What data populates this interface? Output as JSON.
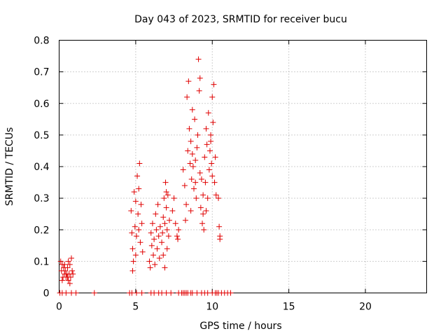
{
  "chart_data": {
    "type": "scatter",
    "title": "Day 043 of 2023, SRMTID for receiver bucu",
    "xlabel": "GPS time / hours",
    "ylabel": "SRMTID / TECUs",
    "xlim": [
      0,
      24
    ],
    "ylim": [
      0,
      0.8
    ],
    "x_ticks": [
      0,
      5,
      10,
      15,
      20
    ],
    "x_tick_labels": [
      "0",
      "5",
      "10",
      "15",
      "20"
    ],
    "y_ticks": [
      0,
      0.1,
      0.2,
      0.3,
      0.4,
      0.5,
      0.6,
      0.7,
      0.8
    ],
    "y_tick_labels": [
      "0",
      "0.1",
      "0.2",
      "0.3",
      "0.4",
      "0.5",
      "0.6",
      "0.7",
      "0.8"
    ],
    "grid": true,
    "marker": "plus",
    "color": "#e00000",
    "series": [
      {
        "points": [
          [
            0.1,
            0.1
          ],
          [
            0.15,
            0.07
          ],
          [
            0.2,
            0.09
          ],
          [
            0.25,
            0.05
          ],
          [
            0.3,
            0.08
          ],
          [
            0.35,
            0.06
          ],
          [
            0.4,
            0.07
          ],
          [
            0.45,
            0.05
          ],
          [
            0.5,
            0.06
          ],
          [
            0.55,
            0.08
          ],
          [
            0.6,
            0.04
          ],
          [
            0.65,
            0.06
          ],
          [
            0.7,
            0.09
          ],
          [
            0.75,
            0.05
          ],
          [
            0.8,
            0.11
          ],
          [
            0.85,
            0.07
          ],
          [
            0.9,
            0.06
          ],
          [
            0.2,
            0.04
          ],
          [
            0.6,
            0.1
          ],
          [
            0.7,
            0.03
          ],
          [
            0.35,
            0.09
          ],
          [
            0.55,
            0.05
          ],
          [
            4.7,
            0.26
          ],
          [
            4.75,
            0.19
          ],
          [
            4.8,
            0.14
          ],
          [
            4.85,
            0.1
          ],
          [
            4.9,
            0.32
          ],
          [
            4.95,
            0.21
          ],
          [
            5.0,
            0.29
          ],
          [
            5.05,
            0.18
          ],
          [
            5.1,
            0.37
          ],
          [
            5.15,
            0.25
          ],
          [
            5.2,
            0.33
          ],
          [
            5.25,
            0.41
          ],
          [
            5.3,
            0.16
          ],
          [
            5.35,
            0.28
          ],
          [
            5.4,
            0.22
          ],
          [
            5.45,
            0.13
          ],
          [
            4.8,
            0.07
          ],
          [
            5.0,
            0.12
          ],
          [
            5.2,
            0.2
          ],
          [
            5.9,
            0.1
          ],
          [
            5.95,
            0.08
          ],
          [
            6.0,
            0.19
          ],
          [
            6.05,
            0.15
          ],
          [
            6.1,
            0.22
          ],
          [
            6.15,
            0.12
          ],
          [
            6.2,
            0.17
          ],
          [
            6.25,
            0.09
          ],
          [
            6.3,
            0.25
          ],
          [
            6.35,
            0.2
          ],
          [
            6.4,
            0.14
          ],
          [
            6.45,
            0.28
          ],
          [
            6.5,
            0.18
          ],
          [
            6.55,
            0.11
          ],
          [
            6.6,
            0.21
          ],
          [
            6.7,
            0.16
          ],
          [
            6.75,
            0.19
          ],
          [
            6.8,
            0.24
          ],
          [
            6.85,
            0.3
          ],
          [
            6.9,
            0.22
          ],
          [
            6.95,
            0.35
          ],
          [
            7.0,
            0.27
          ],
          [
            7.05,
            0.2
          ],
          [
            7.1,
            0.31
          ],
          [
            7.15,
            0.18
          ],
          [
            7.2,
            0.23
          ],
          [
            6.8,
            0.12
          ],
          [
            6.9,
            0.08
          ],
          [
            7.0,
            0.32
          ],
          [
            7.05,
            0.14
          ],
          [
            7.4,
            0.26
          ],
          [
            7.5,
            0.3
          ],
          [
            7.6,
            0.22
          ],
          [
            7.7,
            0.18
          ],
          [
            7.75,
            0.17
          ],
          [
            7.8,
            0.2
          ],
          [
            8.1,
            0.39
          ],
          [
            8.2,
            0.34
          ],
          [
            8.25,
            0.23
          ],
          [
            8.3,
            0.28
          ],
          [
            8.35,
            0.62
          ],
          [
            8.4,
            0.45
          ],
          [
            8.45,
            0.67
          ],
          [
            8.5,
            0.52
          ],
          [
            8.55,
            0.41
          ],
          [
            8.6,
            0.48
          ],
          [
            8.65,
            0.36
          ],
          [
            8.7,
            0.44
          ],
          [
            8.75,
            0.4
          ],
          [
            8.8,
            0.33
          ],
          [
            8.85,
            0.55
          ],
          [
            8.9,
            0.42
          ],
          [
            8.95,
            0.3
          ],
          [
            9.0,
            0.46
          ],
          [
            9.05,
            0.5
          ],
          [
            9.1,
            0.74
          ],
          [
            9.15,
            0.64
          ],
          [
            9.2,
            0.38
          ],
          [
            9.25,
            0.27
          ],
          [
            9.3,
            0.36
          ],
          [
            9.35,
            0.22
          ],
          [
            9.4,
            0.31
          ],
          [
            9.45,
            0.2
          ],
          [
            9.5,
            0.43
          ],
          [
            9.55,
            0.35
          ],
          [
            9.6,
            0.52
          ],
          [
            9.65,
            0.47
          ],
          [
            9.7,
            0.3
          ],
          [
            9.75,
            0.57
          ],
          [
            9.8,
            0.39
          ],
          [
            9.85,
            0.45
          ],
          [
            9.9,
            0.48
          ],
          [
            9.95,
            0.41
          ],
          [
            10.0,
            0.62
          ],
          [
            10.05,
            0.54
          ],
          [
            10.1,
            0.66
          ],
          [
            10.15,
            0.35
          ],
          [
            10.2,
            0.43
          ],
          [
            10.25,
            0.31
          ],
          [
            10.4,
            0.3
          ],
          [
            10.45,
            0.21
          ],
          [
            10.5,
            0.18
          ],
          [
            10.5,
            0.17
          ],
          [
            8.6,
            0.26
          ],
          [
            9.2,
            0.68
          ],
          [
            9.6,
            0.26
          ],
          [
            9.9,
            0.5
          ],
          [
            8.9,
            0.35
          ],
          [
            9.4,
            0.25
          ],
          [
            10.0,
            0.37
          ],
          [
            8.7,
            0.58
          ],
          [
            0.05,
            0
          ],
          [
            0.2,
            0
          ],
          [
            0.45,
            0
          ],
          [
            0.8,
            0
          ],
          [
            1.1,
            0
          ],
          [
            2.3,
            0
          ],
          [
            4.6,
            0
          ],
          [
            4.75,
            0
          ],
          [
            5.05,
            0
          ],
          [
            5.4,
            0
          ],
          [
            6.0,
            0
          ],
          [
            6.2,
            0
          ],
          [
            6.5,
            0
          ],
          [
            6.7,
            0
          ],
          [
            7.0,
            0
          ],
          [
            7.3,
            0
          ],
          [
            7.8,
            0
          ],
          [
            8.0,
            0
          ],
          [
            8.1,
            0
          ],
          [
            8.2,
            0
          ],
          [
            8.3,
            0
          ],
          [
            8.4,
            0
          ],
          [
            8.6,
            0
          ],
          [
            8.7,
            0
          ],
          [
            9.0,
            0
          ],
          [
            9.3,
            0
          ],
          [
            9.5,
            0
          ],
          [
            9.7,
            0
          ],
          [
            10.0,
            0
          ],
          [
            10.2,
            0
          ],
          [
            10.3,
            0
          ],
          [
            10.4,
            0
          ],
          [
            10.6,
            0
          ],
          [
            10.8,
            0
          ],
          [
            11.0,
            0
          ],
          [
            11.2,
            0
          ]
        ]
      }
    ]
  }
}
